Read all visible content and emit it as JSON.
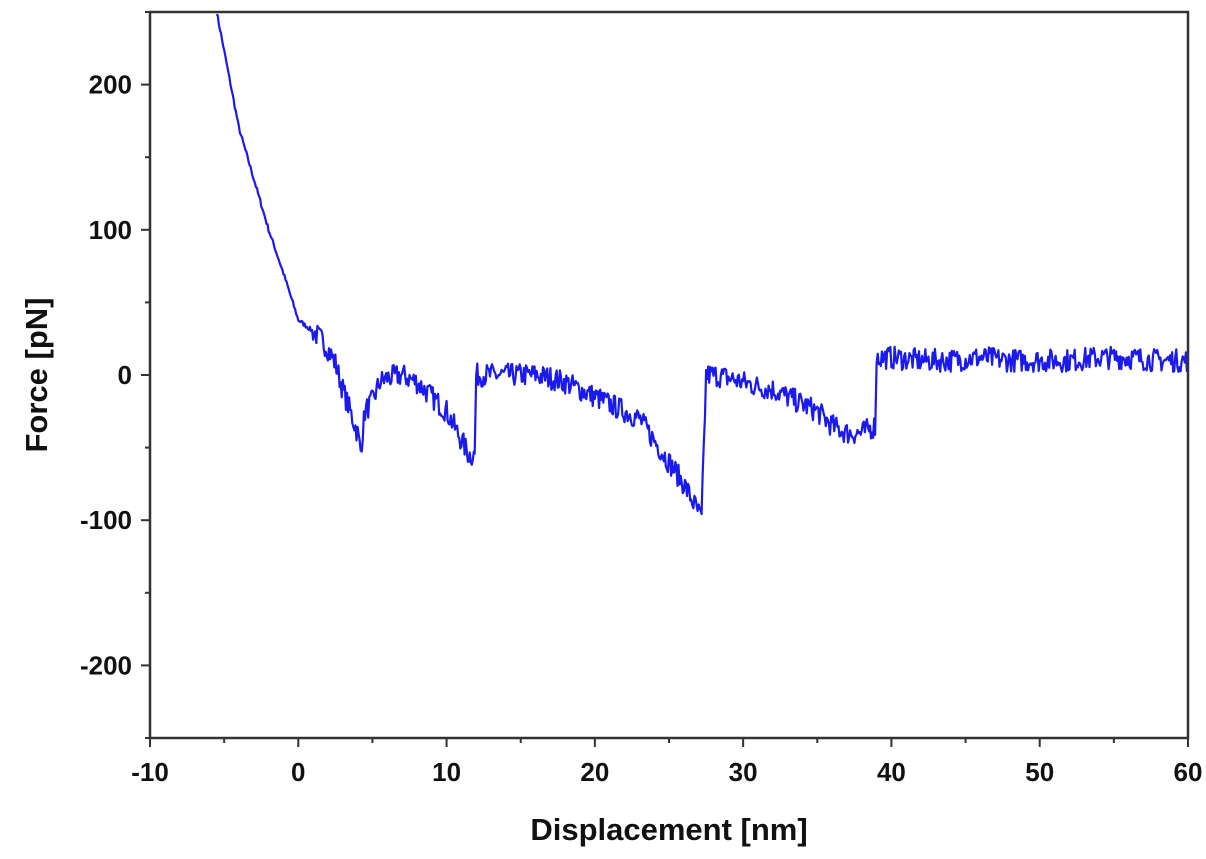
{
  "chart_data": {
    "type": "line",
    "xlabel": "Displacement [nm]",
    "ylabel": "Force [pN]",
    "xlim": [
      -10,
      60
    ],
    "ylim": [
      -250,
      250
    ],
    "x_ticks": [
      -10,
      0,
      10,
      20,
      30,
      40,
      50,
      60
    ],
    "y_ticks": [
      -200,
      -100,
      0,
      100,
      200
    ],
    "x_tick_labels": [
      "-10",
      "0",
      "10",
      "20",
      "30",
      "40",
      "50",
      "60"
    ],
    "y_tick_labels": [
      "-200",
      "-100",
      "0",
      "100",
      "200"
    ],
    "grid": false,
    "legend": "none",
    "colors": {
      "series": "#1a1aee",
      "axis": "#333333"
    },
    "series": [
      {
        "x": [
          -5.5,
          -4,
          -2,
          -1,
          0,
          0.5,
          1,
          1.5,
          2,
          2.5,
          3,
          3.5,
          4,
          4.2,
          4.5,
          5,
          5.5,
          6,
          7,
          8,
          9,
          10,
          10.5,
          11,
          11.5,
          11.9,
          12,
          13,
          14,
          15,
          16,
          17,
          18,
          19,
          20,
          21,
          22,
          23,
          24,
          25,
          26,
          27,
          27.2,
          27.5,
          28,
          29,
          30,
          31,
          32,
          33,
          34,
          35,
          36,
          37,
          38,
          38.9,
          39,
          40,
          42,
          44,
          46,
          48,
          50,
          52,
          54,
          56,
          58,
          60
        ],
        "y": [
          250,
          170,
          100,
          70,
          38,
          34,
          30,
          25,
          18,
          8,
          -10,
          -25,
          -40,
          -52,
          -25,
          -18,
          -5,
          -2,
          0,
          -5,
          -15,
          -25,
          -35,
          -45,
          -55,
          -55,
          0,
          0,
          0,
          0,
          0,
          -2,
          -5,
          -10,
          -15,
          -20,
          -25,
          -30,
          -45,
          -60,
          -75,
          -95,
          -100,
          0,
          0,
          -2,
          -5,
          -8,
          -10,
          -15,
          -20,
          -25,
          -35,
          -40,
          -40,
          -35,
          12,
          12,
          10,
          10,
          12,
          10,
          10,
          10,
          12,
          12,
          10,
          10
        ]
      }
    ]
  }
}
